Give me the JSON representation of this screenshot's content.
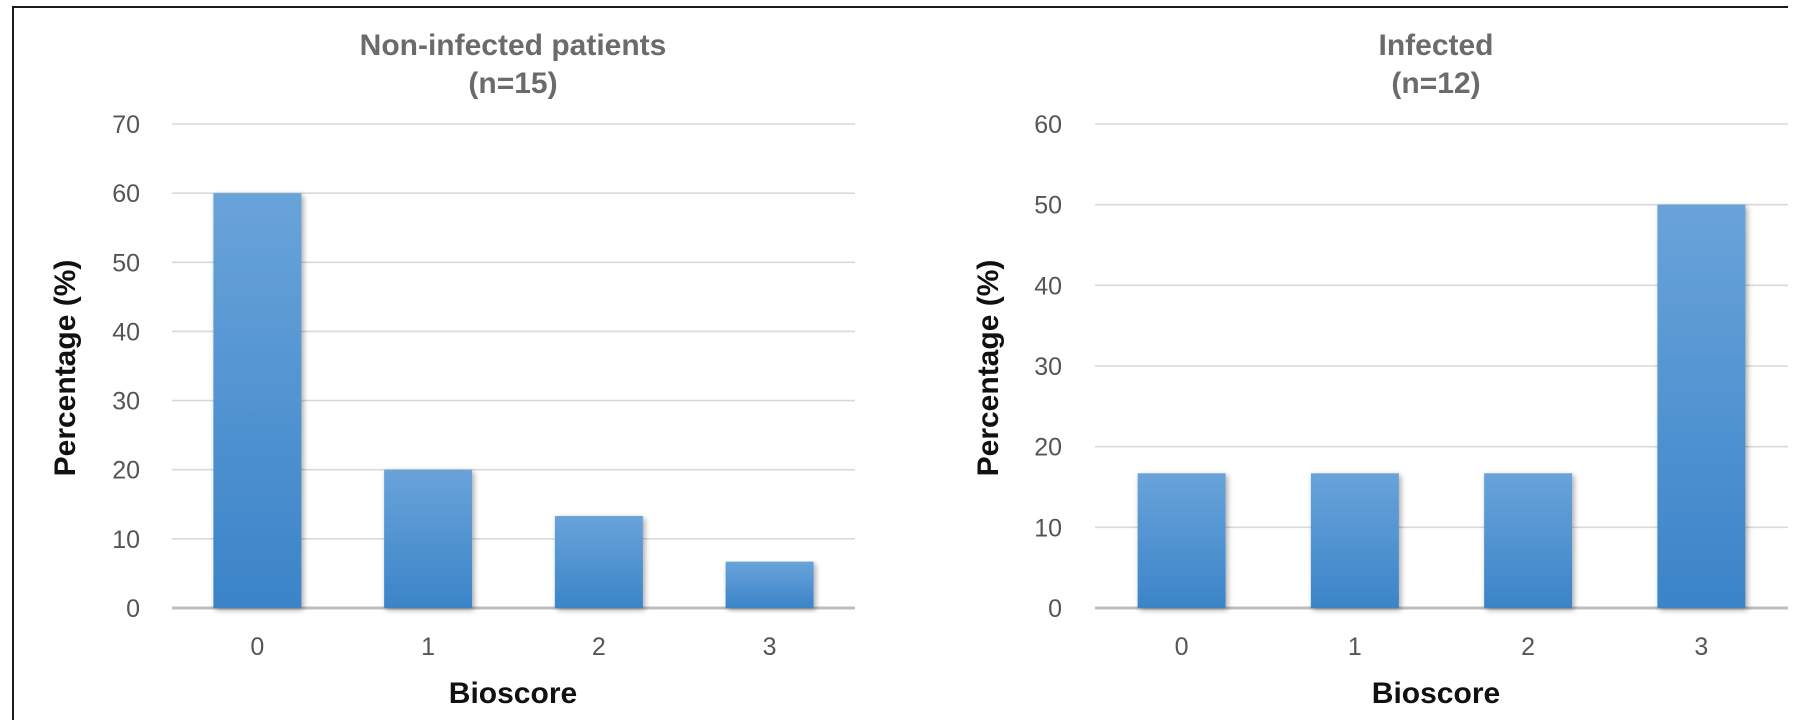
{
  "chart_data": [
    {
      "type": "bar",
      "title": "Non-infected patients",
      "subtitle": "(n=15)",
      "categories": [
        "0",
        "1",
        "2",
        "3"
      ],
      "values": [
        60,
        20,
        13.3,
        6.7
      ],
      "xlabel": "Bioscore",
      "ylabel": "Percentage (%)",
      "ylim": [
        0,
        70
      ],
      "yticks": [
        0,
        10,
        20,
        30,
        40,
        50,
        60,
        70
      ],
      "grid": true,
      "bar_color": "#4a8fd0"
    },
    {
      "type": "bar",
      "title": "Infected",
      "subtitle": "(n=12)",
      "categories": [
        "0",
        "1",
        "2",
        "3"
      ],
      "values": [
        16.7,
        16.7,
        16.7,
        50
      ],
      "xlabel": "Bioscore",
      "ylabel": "Percentage (%)",
      "ylim": [
        0,
        60
      ],
      "yticks": [
        0,
        10,
        20,
        30,
        40,
        50,
        60
      ],
      "grid": true,
      "bar_color": "#4a8fd0"
    }
  ]
}
